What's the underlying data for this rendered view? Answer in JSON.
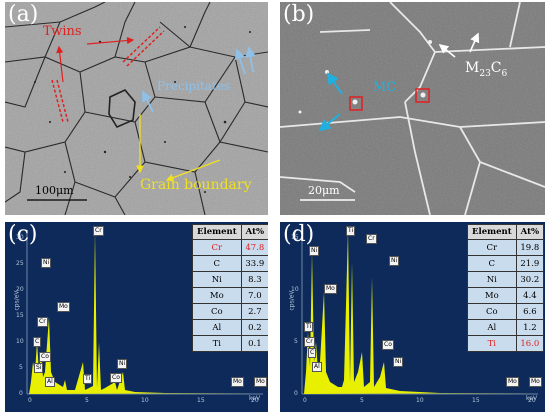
{
  "panel_a": {
    "label": "(a)",
    "twins": "Twins",
    "precipitates": "Precipitates",
    "grain_boundary": "Grain boundary",
    "scale_bar": "100μm"
  },
  "panel_b": {
    "label": "(b)",
    "mc": "MC",
    "m23c6": "M",
    "m23c6_sub": "23",
    "m23c6_c": "C",
    "m23c6_sub2": "6",
    "scale_bar": "20μm"
  },
  "panel_c": {
    "label": "(c)",
    "ylabel": "cps/eV",
    "xlabel": "keV",
    "table_header": [
      "Element",
      "At%"
    ],
    "table_rows": [
      {
        "el": "Cr",
        "val": "47.8",
        "highlight": true
      },
      {
        "el": "C",
        "val": "33.9",
        "highlight": false
      },
      {
        "el": "Ni",
        "val": "8.3",
        "highlight": false
      },
      {
        "el": "Mo",
        "val": "7.0",
        "highlight": false
      },
      {
        "el": "Co",
        "val": "2.7",
        "highlight": false
      },
      {
        "el": "Al",
        "val": "0.2",
        "highlight": false
      },
      {
        "el": "Ti",
        "val": "0.1",
        "highlight": false
      }
    ],
    "yticks": [
      "0",
      "5",
      "10",
      "15",
      "20",
      "25",
      "30"
    ],
    "xticks": [
      "0",
      "5",
      "10",
      "15",
      "20"
    ],
    "peaks": [
      "Cr",
      "Ni",
      "Cr",
      "C",
      "Co",
      "Si",
      "Al",
      "Mo",
      "Ti",
      "Co",
      "Ni",
      "Mo",
      "Mo"
    ],
    "colors": {
      "background": "#0d2a5a",
      "spectrum": "#e8f000"
    }
  },
  "panel_d": {
    "label": "(d)",
    "ylabel": "cps/eV",
    "xlabel": "keV",
    "table_header": [
      "Element",
      "At%"
    ],
    "table_rows": [
      {
        "el": "Cr",
        "val": "19.8",
        "highlight": false
      },
      {
        "el": "C",
        "val": "21.9",
        "highlight": false
      },
      {
        "el": "Ni",
        "val": "30.2",
        "highlight": false
      },
      {
        "el": "Mo",
        "val": "4.4",
        "highlight": false
      },
      {
        "el": "Co",
        "val": "6.6",
        "highlight": false
      },
      {
        "el": "Al",
        "val": "1.2",
        "highlight": false
      },
      {
        "el": "Ti",
        "val": "16.0",
        "highlight": true
      }
    ],
    "yticks": [
      "0",
      "5",
      "10",
      "15"
    ],
    "xticks": [
      "0",
      "5",
      "10",
      "15",
      "20"
    ],
    "peaks": [
      "Ti",
      "Cr",
      "Ni",
      "Mo",
      "Ni",
      "Ti",
      "Cr",
      "C",
      "Co",
      "Al",
      "Ni",
      "Mo",
      "Mo"
    ],
    "colors": {
      "background": "#0d2a5a",
      "spectrum": "#e8f000"
    }
  }
}
